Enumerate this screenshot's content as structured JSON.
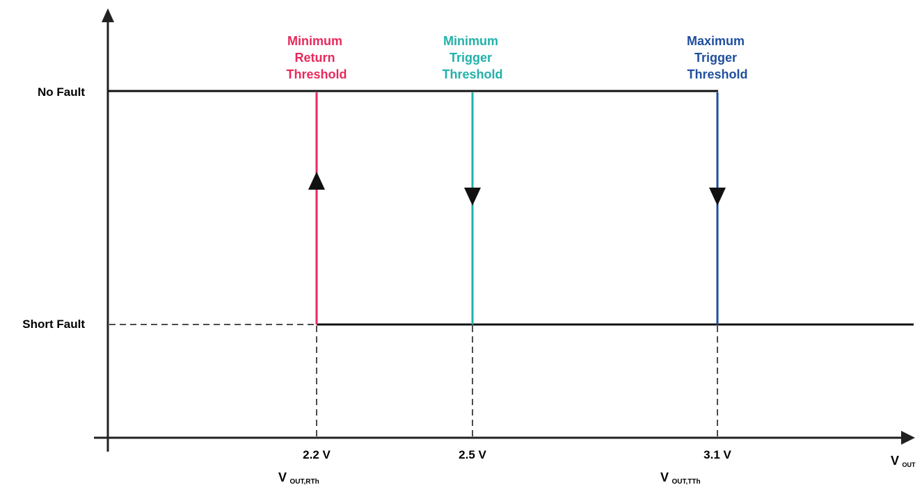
{
  "diagram": {
    "y_states": {
      "no_fault": "No Fault",
      "short_fault": "Short Fault"
    },
    "thresholds": [
      {
        "lines": [
          "Minimum",
          "Return",
          "Threshold"
        ],
        "value_label": "2.2 V",
        "color": "#E8295C",
        "arrow_direction": "up"
      },
      {
        "lines": [
          "Minimum",
          "Trigger",
          "Threshold"
        ],
        "value_label": "2.5 V",
        "color": "#20B2AA",
        "arrow_direction": "down"
      },
      {
        "lines": [
          "Maximum",
          "Trigger",
          "Threshold"
        ],
        "value_label": "3.1 V",
        "color": "#1F4E9E",
        "arrow_direction": "down"
      }
    ],
    "axis": {
      "x_label_main": "V",
      "x_label_sub": "OUT"
    },
    "subscript_labels": [
      {
        "main": "V",
        "sub": "OUT,RTh"
      },
      {
        "main": "V",
        "sub": "OUT,TTh"
      }
    ],
    "colors": {
      "axis": "#222222",
      "trace": "#111111"
    }
  }
}
